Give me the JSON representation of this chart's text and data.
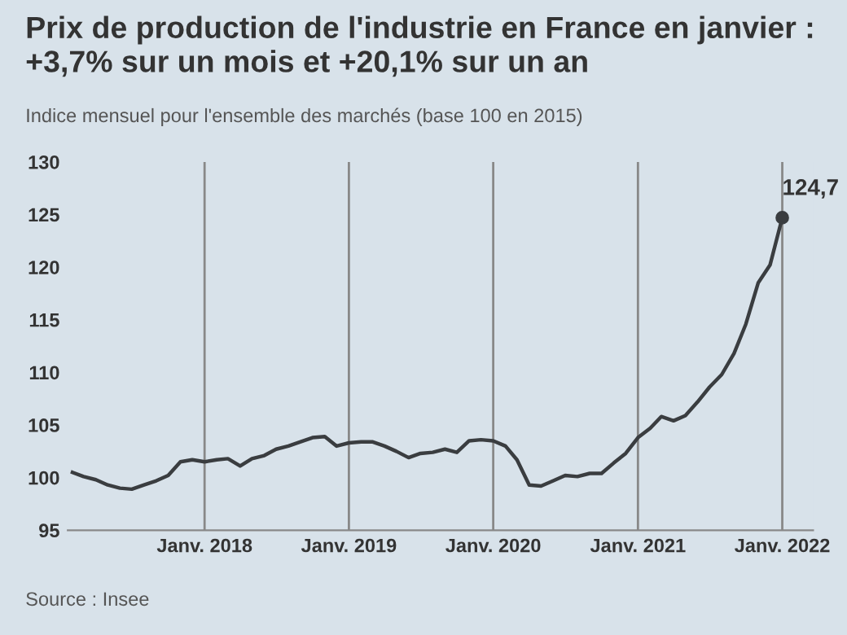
{
  "chart_data": {
    "type": "line",
    "title": "Prix de production de l'industrie en France en janvier :\n+3,7% sur un mois et +20,1% sur un an",
    "subtitle": "Indice mensuel pour l'ensemble des marchés (base 100 en 2015)",
    "x": [
      "2017-02",
      "2017-03",
      "2017-04",
      "2017-05",
      "2017-06",
      "2017-07",
      "2017-08",
      "2017-09",
      "2017-10",
      "2017-11",
      "2017-12",
      "2018-01",
      "2018-02",
      "2018-03",
      "2018-04",
      "2018-05",
      "2018-06",
      "2018-07",
      "2018-08",
      "2018-09",
      "2018-10",
      "2018-11",
      "2018-12",
      "2019-01",
      "2019-02",
      "2019-03",
      "2019-04",
      "2019-05",
      "2019-06",
      "2019-07",
      "2019-08",
      "2019-09",
      "2019-10",
      "2019-11",
      "2019-12",
      "2020-01",
      "2020-02",
      "2020-03",
      "2020-04",
      "2020-05",
      "2020-06",
      "2020-07",
      "2020-08",
      "2020-09",
      "2020-10",
      "2020-11",
      "2020-12",
      "2021-01",
      "2021-02",
      "2021-03",
      "2021-04",
      "2021-05",
      "2021-06",
      "2021-07",
      "2021-08",
      "2021-09",
      "2021-10",
      "2021-11",
      "2021-12",
      "2022-01"
    ],
    "series": [
      {
        "color": "#3a3d40",
        "values": [
          100.5,
          100.1,
          99.8,
          99.3,
          99.0,
          98.9,
          99.3,
          99.7,
          100.2,
          101.5,
          101.7,
          101.5,
          101.7,
          101.8,
          101.1,
          101.8,
          102.1,
          102.7,
          103.0,
          103.4,
          103.8,
          103.9,
          103.0,
          103.3,
          103.4,
          103.4,
          103.0,
          102.5,
          101.9,
          102.3,
          102.4,
          102.7,
          102.4,
          103.5,
          103.6,
          103.5,
          103.0,
          101.7,
          99.3,
          99.2,
          99.7,
          100.2,
          100.1,
          100.4,
          100.4,
          101.4,
          102.3,
          103.8,
          104.7,
          105.8,
          105.4,
          105.9,
          107.2,
          108.6,
          109.8,
          111.8,
          114.6,
          118.5,
          120.2,
          124.7
        ]
      }
    ],
    "xticks": [
      {
        "value": "2018-01",
        "label": "Janv. 2018"
      },
      {
        "value": "2019-01",
        "label": "Janv. 2019"
      },
      {
        "value": "2020-01",
        "label": "Janv. 2020"
      },
      {
        "value": "2021-01",
        "label": "Janv. 2021"
      },
      {
        "value": "2022-01",
        "label": "Janv. 2022"
      }
    ],
    "xlim": [
      "2017-01-20",
      "2022-03-20"
    ],
    "ylim": [
      95,
      130
    ],
    "yticks": [
      95,
      100,
      105,
      110,
      115,
      120,
      125,
      130
    ],
    "grid": "x",
    "legend": false,
    "line_style": "solid",
    "annotations": [
      {
        "text": "124,7",
        "x": "2022-01",
        "y": 124.7
      },
      "Source : Insee"
    ]
  }
}
